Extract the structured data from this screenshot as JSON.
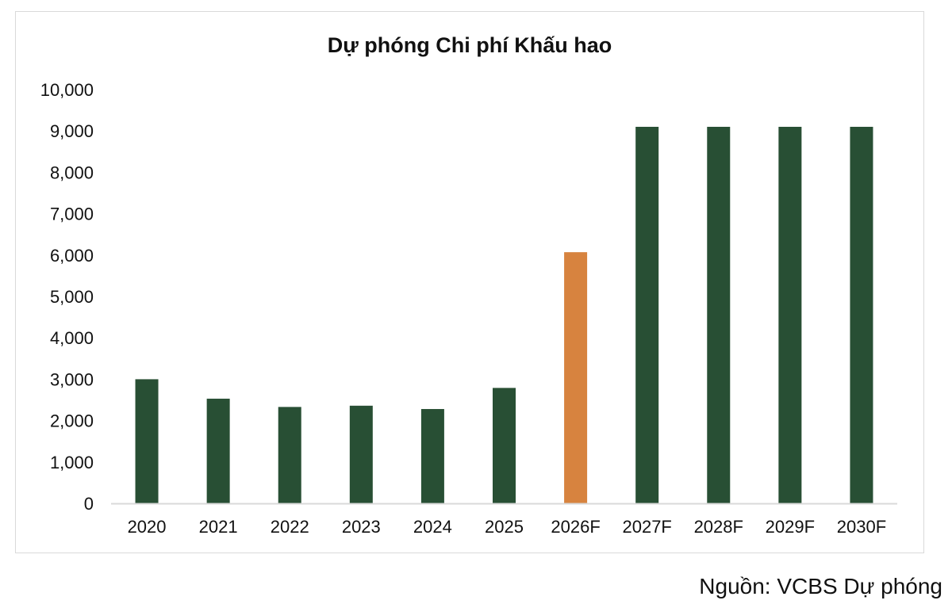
{
  "chart_data": {
    "type": "bar",
    "title": "Dự phóng Chi phí Khấu hao",
    "xlabel": "",
    "ylabel": "",
    "categories": [
      "2020",
      "2021",
      "2022",
      "2023",
      "2024",
      "2025",
      "2026F",
      "2027F",
      "2028F",
      "2029F",
      "2030F"
    ],
    "values": [
      3000,
      2530,
      2330,
      2360,
      2280,
      2790,
      6070,
      9100,
      9100,
      9100,
      9100
    ],
    "ylim": [
      0,
      10000
    ],
    "yticks": [
      0,
      1000,
      2000,
      3000,
      4000,
      5000,
      6000,
      7000,
      8000,
      9000,
      10000
    ],
    "ytick_labels": [
      "0",
      "1,000",
      "2,000",
      "3,000",
      "4,000",
      "5,000",
      "6,000",
      "7,000",
      "8,000",
      "9,000",
      "10,000"
    ],
    "grid": false,
    "legend": "none",
    "colors": {
      "bar": "#284f34",
      "highlight_bar": "#d7833f",
      "axis": "#d9d9d9"
    },
    "highlight_category": "2026F"
  },
  "source": "Nguồn: VCBS Dự phóng"
}
